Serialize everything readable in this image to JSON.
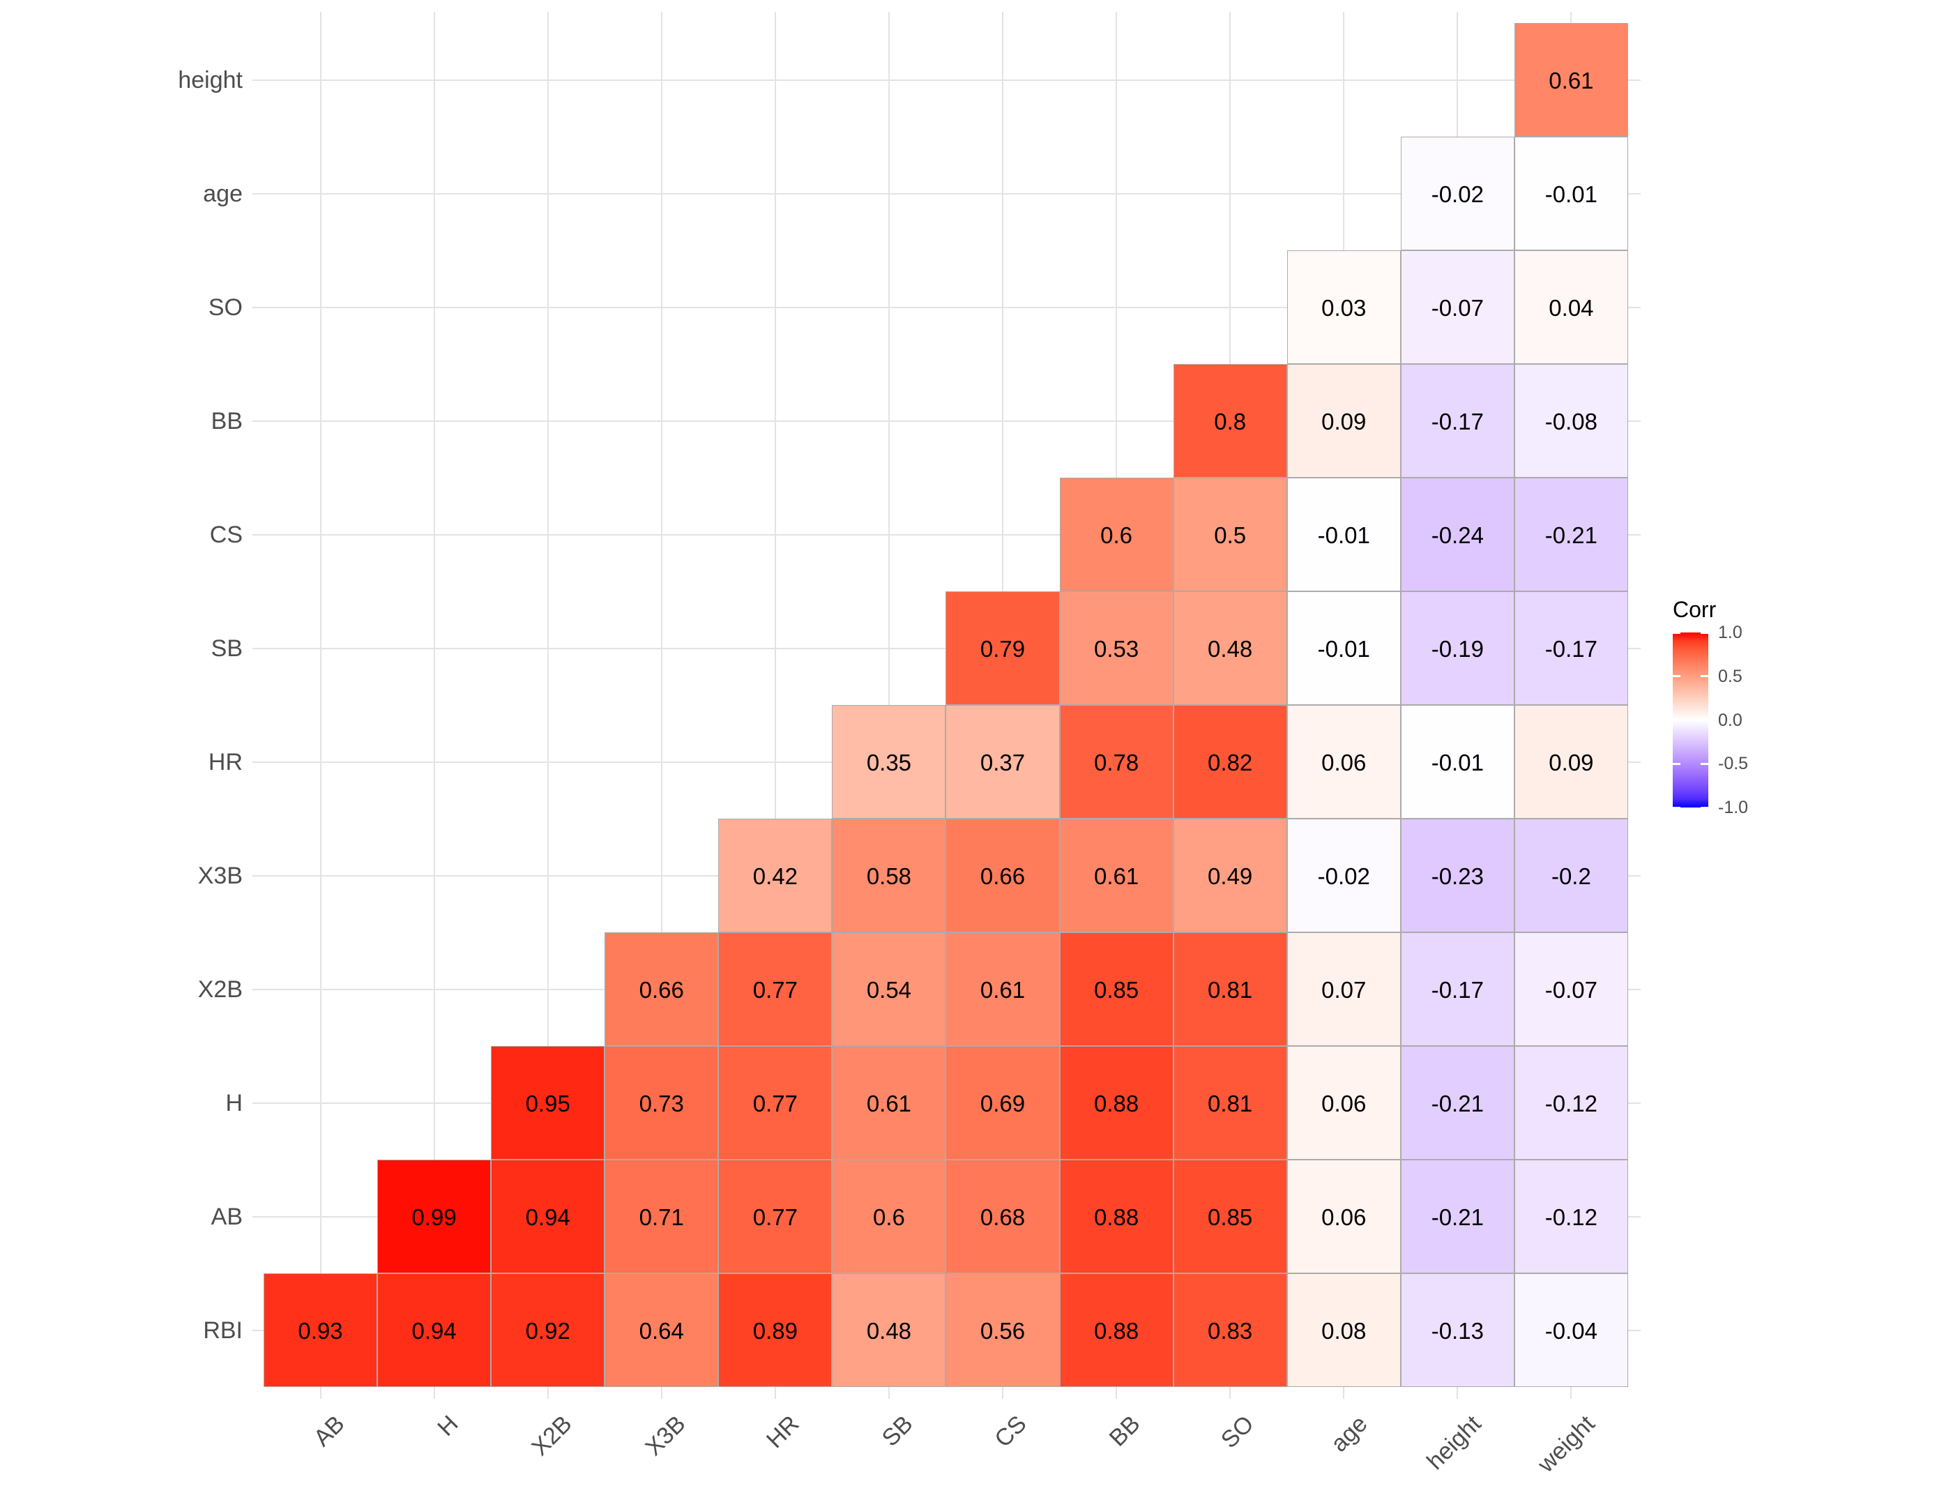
{
  "chart_data": {
    "type": "heatmap",
    "title": "",
    "x_categories": [
      "AB",
      "H",
      "X2B",
      "X3B",
      "HR",
      "SB",
      "CS",
      "BB",
      "SO",
      "age",
      "height",
      "weight"
    ],
    "y_categories": [
      "height",
      "age",
      "SO",
      "BB",
      "CS",
      "SB",
      "HR",
      "X3B",
      "X2B",
      "H",
      "AB",
      "RBI"
    ],
    "matrix": [
      [
        null,
        null,
        null,
        null,
        null,
        null,
        null,
        null,
        null,
        null,
        null,
        0.61
      ],
      [
        null,
        null,
        null,
        null,
        null,
        null,
        null,
        null,
        null,
        null,
        -0.02,
        -0.01
      ],
      [
        null,
        null,
        null,
        null,
        null,
        null,
        null,
        null,
        null,
        0.03,
        -0.07,
        0.04
      ],
      [
        null,
        null,
        null,
        null,
        null,
        null,
        null,
        null,
        0.8,
        0.09,
        -0.17,
        -0.08
      ],
      [
        null,
        null,
        null,
        null,
        null,
        null,
        null,
        0.6,
        0.5,
        -0.01,
        -0.24,
        -0.21
      ],
      [
        null,
        null,
        null,
        null,
        null,
        null,
        0.79,
        0.53,
        0.48,
        -0.01,
        -0.19,
        -0.17
      ],
      [
        null,
        null,
        null,
        null,
        null,
        0.35,
        0.37,
        0.78,
        0.82,
        0.06,
        -0.01,
        0.09
      ],
      [
        null,
        null,
        null,
        null,
        0.42,
        0.58,
        0.66,
        0.61,
        0.49,
        -0.02,
        -0.23,
        -0.2
      ],
      [
        null,
        null,
        null,
        0.66,
        0.77,
        0.54,
        0.61,
        0.85,
        0.81,
        0.07,
        -0.17,
        -0.07
      ],
      [
        null,
        null,
        0.95,
        0.73,
        0.77,
        0.61,
        0.69,
        0.88,
        0.81,
        0.06,
        -0.21,
        -0.12
      ],
      [
        null,
        0.99,
        0.94,
        0.71,
        0.77,
        0.6,
        0.68,
        0.88,
        0.85,
        0.06,
        -0.21,
        -0.12
      ],
      [
        0.93,
        0.94,
        0.92,
        0.64,
        0.89,
        0.48,
        0.56,
        0.88,
        0.83,
        0.08,
        -0.13,
        -0.04
      ]
    ],
    "legend": {
      "title": "Corr",
      "position": "right",
      "limits": [
        -1,
        1
      ],
      "ticks": [
        {
          "label": "1.0",
          "value": 1.0
        },
        {
          "label": "0.5",
          "value": 0.5
        },
        {
          "label": "0.0",
          "value": 0.0
        },
        {
          "label": "-0.5",
          "value": -0.5
        },
        {
          "label": "-1.0",
          "value": -1.0
        }
      ],
      "colors": {
        "high": "#FF0000",
        "mid": "#FFFFFF",
        "low": "#0000FF"
      },
      "interpolation": "lab"
    },
    "grid": true,
    "xlabel": "",
    "ylabel": ""
  }
}
